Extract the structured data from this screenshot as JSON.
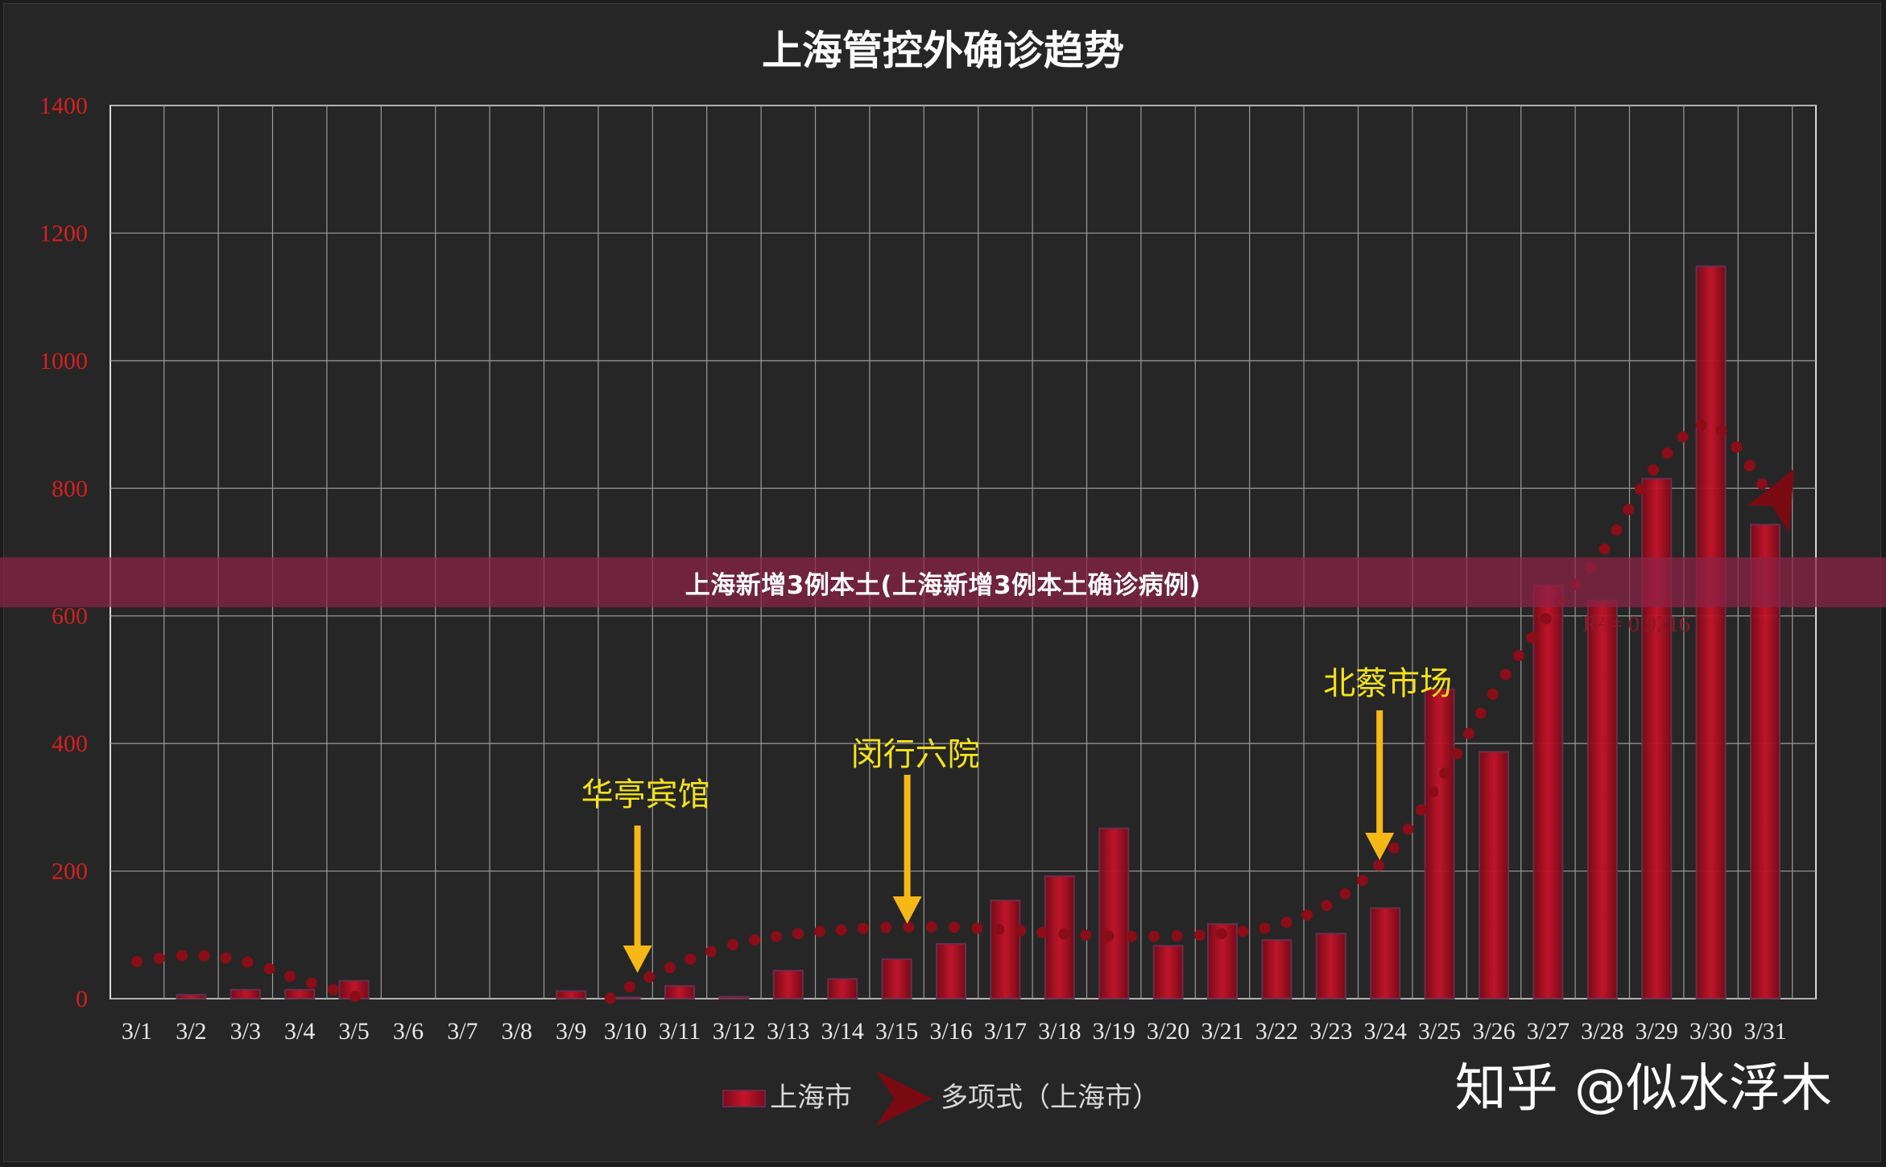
{
  "banner": {
    "text": "上海新增3例本土(上海新增3例本土确诊病例)"
  },
  "chart_data": {
    "type": "bar",
    "title": "上海管控外确诊趋势",
    "categories": [
      "3/1",
      "3/2",
      "3/3",
      "3/4",
      "3/5",
      "3/6",
      "3/7",
      "3/8",
      "3/9",
      "3/10",
      "3/11",
      "3/12",
      "3/13",
      "3/14",
      "3/15",
      "3/16",
      "3/17",
      "3/18",
      "3/19",
      "3/20",
      "3/21",
      "3/22",
      "3/23",
      "3/24",
      "3/25",
      "3/26",
      "3/27",
      "3/28",
      "3/29",
      "3/30",
      "3/31"
    ],
    "series": [
      {
        "name": "上海市",
        "type": "bar",
        "values": [
          0,
          6,
          14,
          14,
          28,
          0,
          0,
          0,
          12,
          2,
          20,
          3,
          44,
          31,
          62,
          86,
          154,
          192,
          267,
          83,
          117,
          92,
          102,
          142,
          485,
          387,
          648,
          624,
          815,
          1148,
          743
        ]
      },
      {
        "name": "多项式（上海市）",
        "type": "line",
        "style": "dotted",
        "values": [
          58,
          68,
          58,
          30,
          4,
          -25,
          -45,
          -50,
          -35,
          15,
          55,
          85,
          100,
          108,
          112,
          112,
          108,
          102,
          98,
          98,
          102,
          115,
          150,
          220,
          340,
          480,
          600,
          700,
          835,
          900,
          800
        ]
      }
    ],
    "ylim": [
      0,
      1400
    ],
    "yticks": [
      0,
      200,
      400,
      600,
      800,
      1000,
      1200,
      1400
    ],
    "grid": true,
    "legend_position": "bottom",
    "r_squared_label": "R² = 0.9216",
    "annotations": [
      {
        "label": "华亭宾馆",
        "category": "3/10"
      },
      {
        "label": "闵行六院",
        "category": "3/15"
      },
      {
        "label": "北蔡市场",
        "category": "3/24"
      }
    ],
    "colors": {
      "bar": "#b0101e",
      "trend": "#8a0d18",
      "annotation": "#f3e21a",
      "arrow": "#f5b816",
      "ytick": "#d42020"
    }
  },
  "watermark": {
    "text": "知乎 @似水浮木"
  }
}
